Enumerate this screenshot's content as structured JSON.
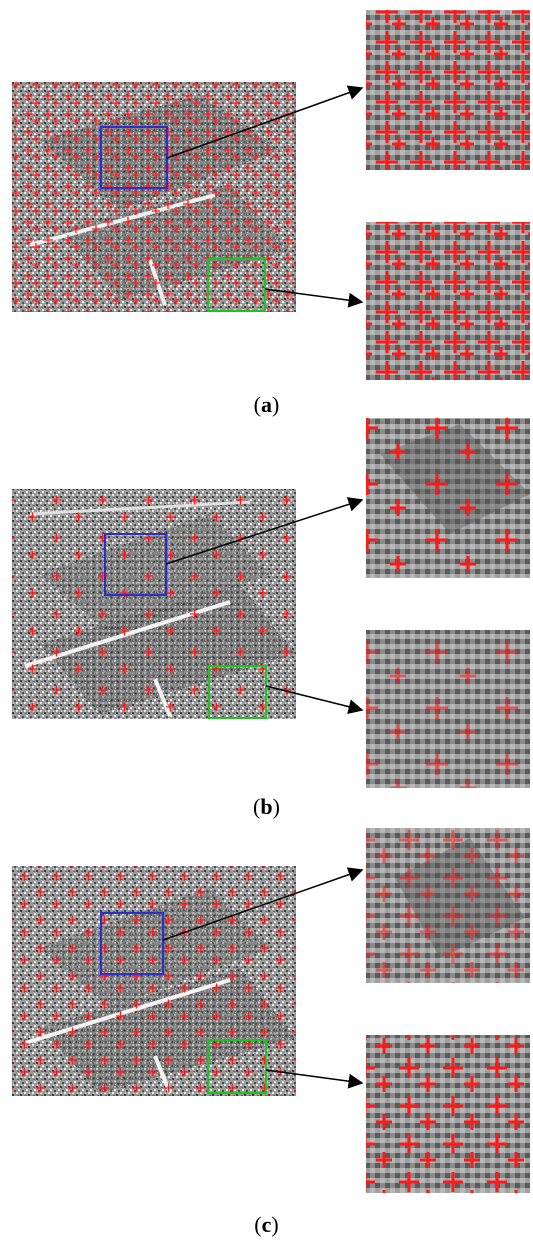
{
  "figure": {
    "panels": [
      {
        "id": "a",
        "caption_letter": "a",
        "density": "high"
      },
      {
        "id": "b",
        "caption_letter": "b",
        "density": "low"
      },
      {
        "id": "c",
        "caption_letter": "c",
        "density": "medium"
      }
    ],
    "colors": {
      "marker": "#ff1a1a",
      "box_top": "#2e2ecf",
      "box_bottom": "#1ec41e",
      "arrow": "#000000"
    },
    "marker_symbol": "+"
  }
}
